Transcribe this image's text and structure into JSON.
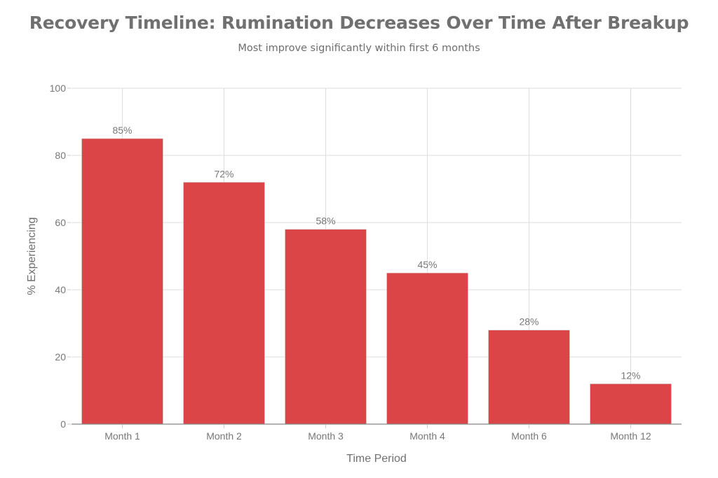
{
  "chart_data": {
    "type": "bar",
    "title": "Recovery Timeline: Rumination Decreases Over Time After Breakup",
    "subtitle": "Most improve significantly within first 6 months",
    "xlabel": "Time Period",
    "ylabel": "% Experiencing",
    "categories": [
      "Month 1",
      "Month 2",
      "Month 3",
      "Month 4",
      "Month 6",
      "Month 12"
    ],
    "values": [
      85,
      72,
      58,
      45,
      28,
      12
    ],
    "data_labels": [
      "85%",
      "72%",
      "58%",
      "45%",
      "28%",
      "12%"
    ],
    "ylim": [
      0,
      100
    ],
    "yticks": [
      0,
      20,
      40,
      60,
      80,
      100
    ],
    "grid": true,
    "legend": null,
    "colors": {
      "bar": "#DB4548",
      "grid": "#DDDDDD",
      "axis": "#888888",
      "text": "#707070"
    }
  }
}
